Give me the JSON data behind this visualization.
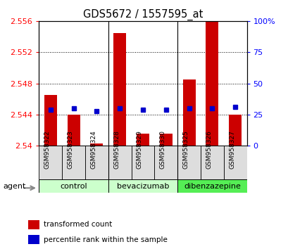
{
  "title": "GDS5672 / 1557595_at",
  "samples": [
    "GSM958322",
    "GSM958323",
    "GSM958324",
    "GSM958328",
    "GSM958329",
    "GSM958330",
    "GSM958325",
    "GSM958326",
    "GSM958327"
  ],
  "red_values": [
    2.5465,
    2.544,
    2.5403,
    2.5545,
    2.5415,
    2.5415,
    2.5485,
    2.556,
    2.544
  ],
  "blue_values": [
    29,
    30,
    28,
    30,
    29,
    29,
    30,
    30,
    31
  ],
  "y_min": 2.54,
  "y_max": 2.556,
  "y_ticks_left": [
    2.54,
    2.544,
    2.548,
    2.552,
    2.556
  ],
  "y_ticks_right": [
    0,
    25,
    50,
    75,
    100
  ],
  "bar_color": "#cc0000",
  "dot_color": "#0000cc",
  "baseline": 2.54,
  "group_info": [
    {
      "name": "control",
      "start": 0,
      "end": 2,
      "color": "#ccffcc"
    },
    {
      "name": "bevacizumab",
      "start": 3,
      "end": 5,
      "color": "#ccffcc"
    },
    {
      "name": "dibenzazepine",
      "start": 6,
      "end": 8,
      "color": "#55ee55"
    }
  ],
  "agent_label": "agent",
  "legend_bar": "transformed count",
  "legend_dot": "percentile rank within the sample",
  "group_dividers": [
    2.5,
    5.5
  ],
  "bar_width": 0.55
}
